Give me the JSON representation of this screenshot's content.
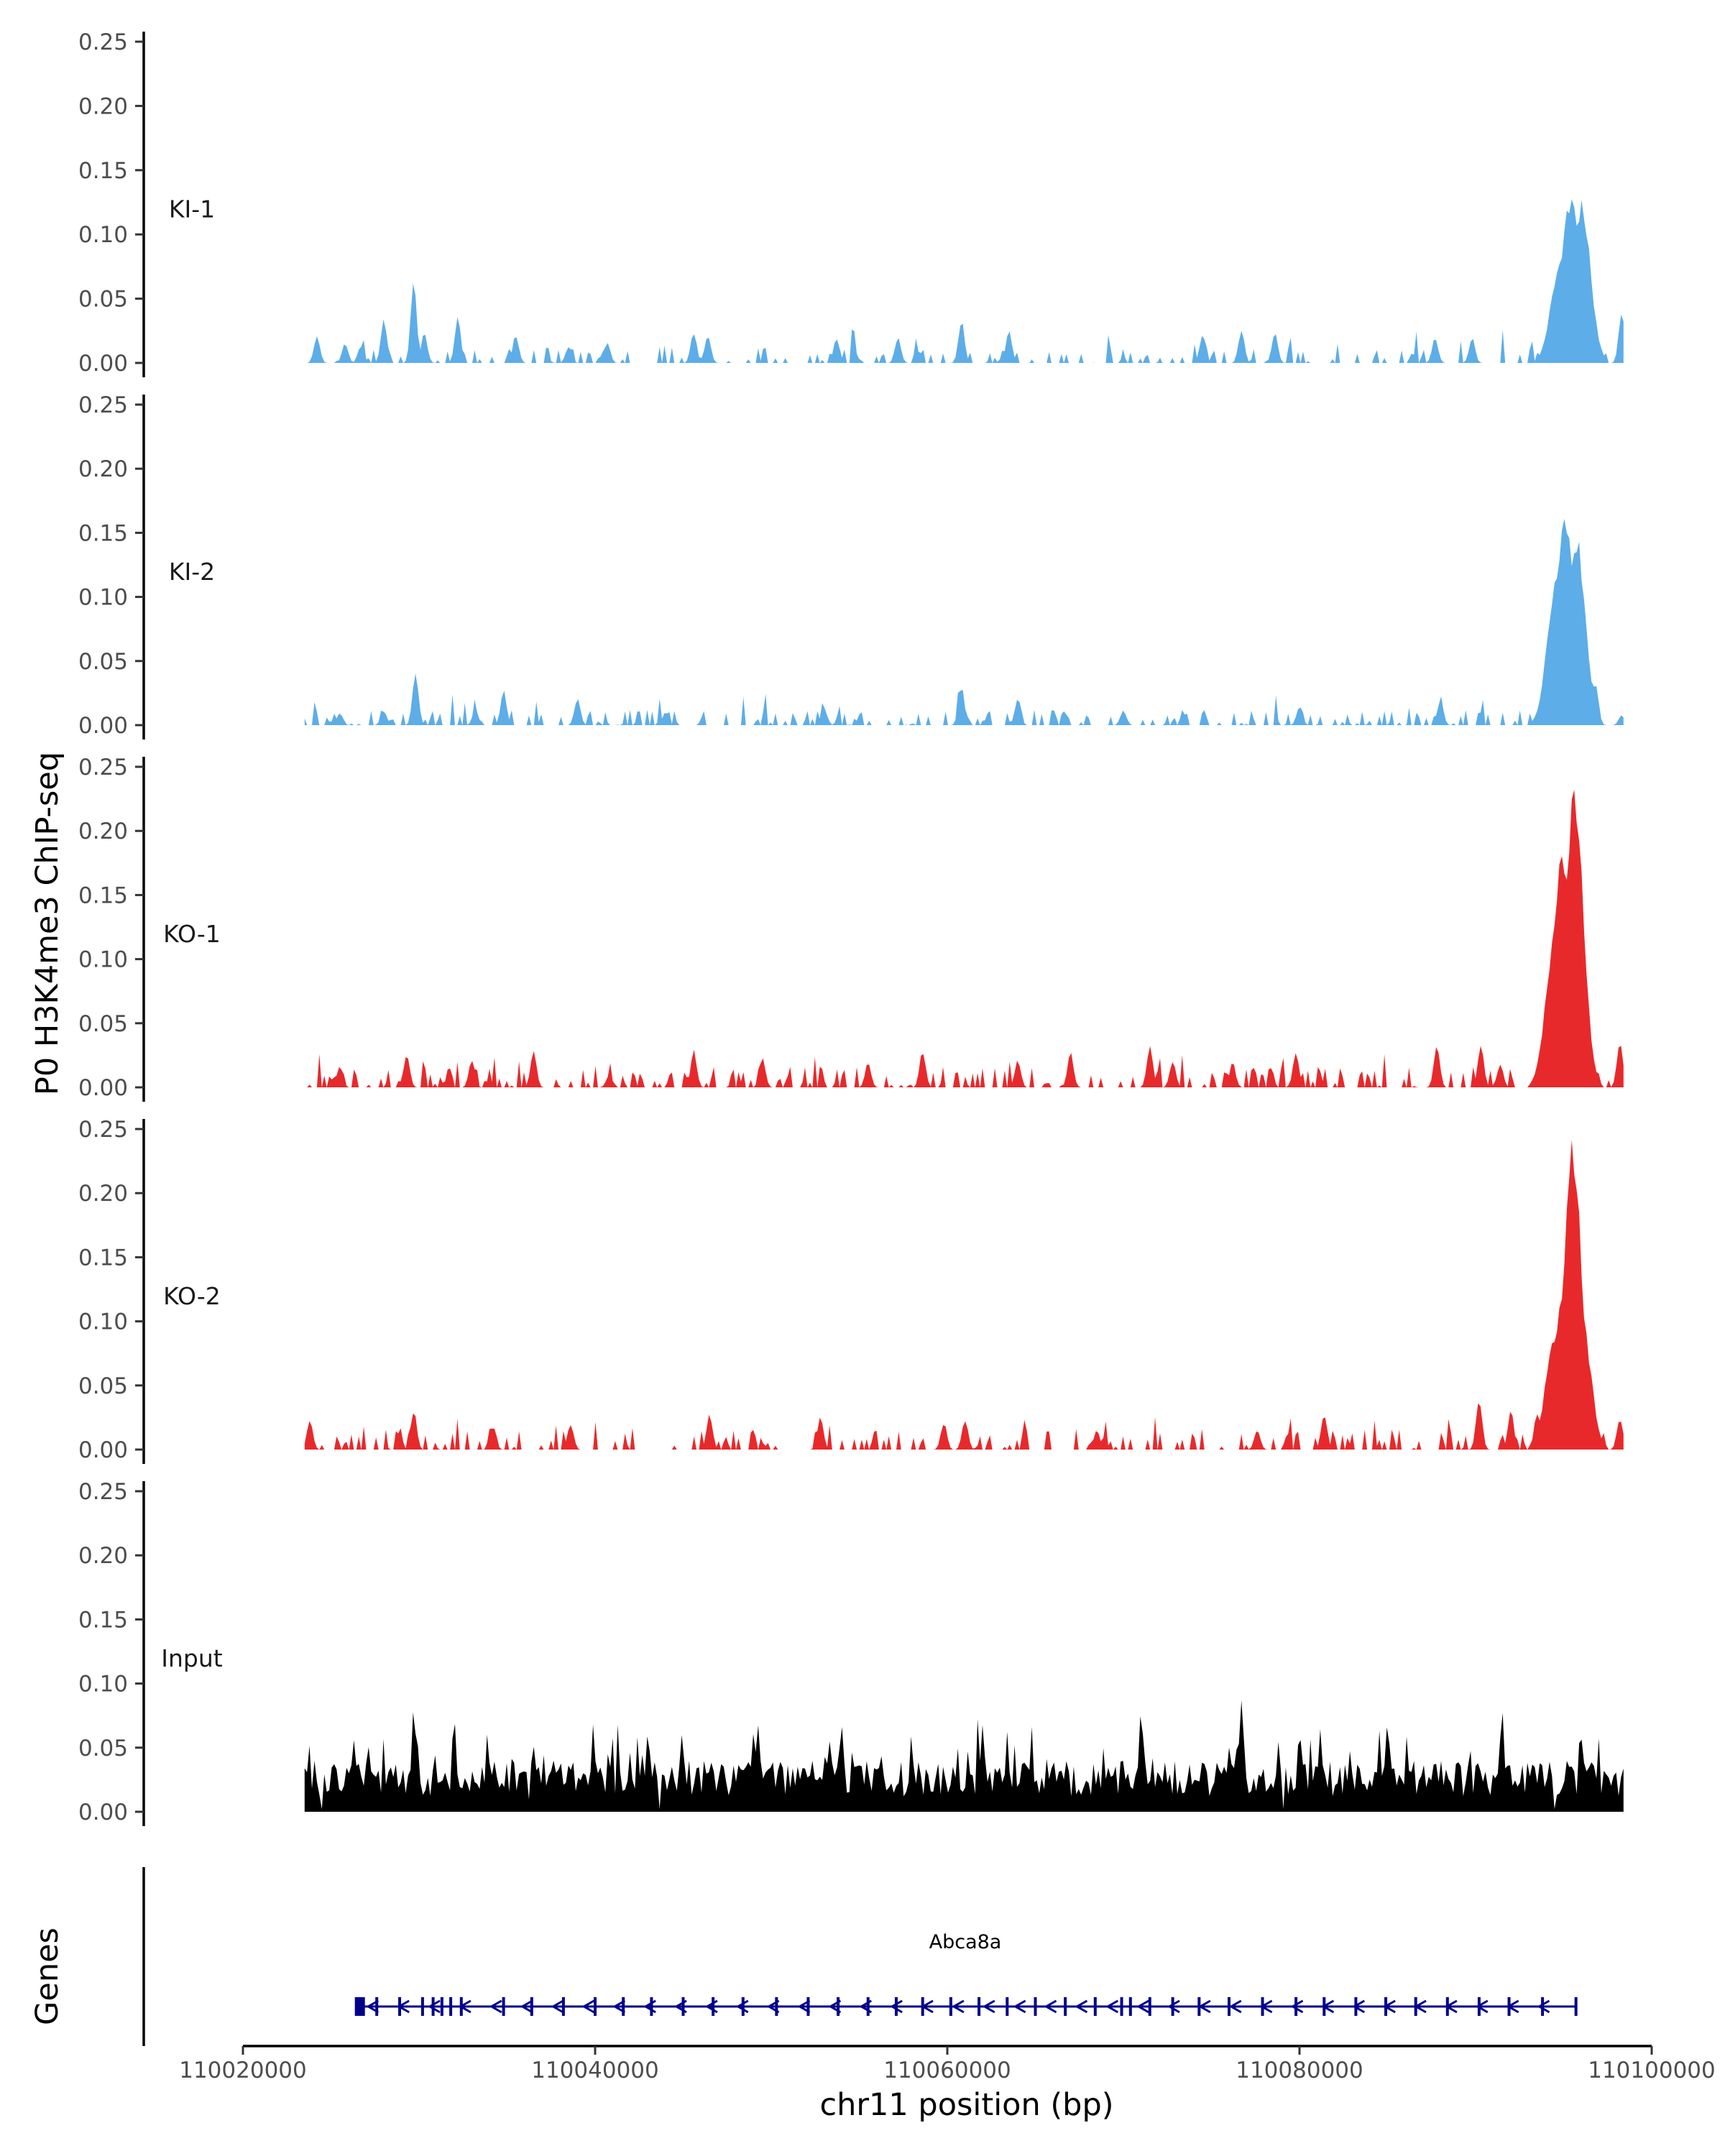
{
  "chart_data": {
    "type": "area",
    "title": "",
    "ylabel": "P0 H3K4me3 ChIP-seq",
    "genes_label": "Genes",
    "xlabel": "chr11 position (bp)",
    "xlim": [
      110020000,
      110100000
    ],
    "ylim": [
      0,
      0.25
    ],
    "x_ticks": [
      110020000,
      110040000,
      110060000,
      110080000,
      110100000
    ],
    "x_tick_labels": [
      "110020000",
      "110040000",
      "110060000",
      "110080000",
      "110100000"
    ],
    "y_ticks": [
      0,
      0.05,
      0.1,
      0.15,
      0.2,
      0.25
    ],
    "y_tick_labels": [
      "0.00",
      "0.05",
      "0.10",
      "0.15",
      "0.20",
      "0.25"
    ],
    "signal_range_bp": [
      110023500,
      110098500
    ],
    "series": [
      {
        "name": "KI-1",
        "color": "#5dade8",
        "peaks": [
          {
            "x": 110024200,
            "y": 0.022
          },
          {
            "x": 110025800,
            "y": 0.016
          },
          {
            "x": 110026700,
            "y": 0.014
          },
          {
            "x": 110028000,
            "y": 0.035
          },
          {
            "x": 110029700,
            "y": 0.065
          },
          {
            "x": 110030300,
            "y": 0.024
          },
          {
            "x": 110032200,
            "y": 0.036
          },
          {
            "x": 110035500,
            "y": 0.023
          },
          {
            "x": 110038500,
            "y": 0.014
          },
          {
            "x": 110040700,
            "y": 0.016
          },
          {
            "x": 110045600,
            "y": 0.025
          },
          {
            "x": 110046400,
            "y": 0.022
          },
          {
            "x": 110053700,
            "y": 0.02
          },
          {
            "x": 110057200,
            "y": 0.021
          },
          {
            "x": 110060800,
            "y": 0.035
          },
          {
            "x": 110063500,
            "y": 0.026
          },
          {
            "x": 110074500,
            "y": 0.024
          },
          {
            "x": 110076700,
            "y": 0.027
          },
          {
            "x": 110078600,
            "y": 0.025
          },
          {
            "x": 110087700,
            "y": 0.021
          },
          {
            "x": 110089800,
            "y": 0.02
          },
          {
            "x": 110094800,
            "y": 0.08
          },
          {
            "x": 110095400,
            "y": 0.133
          },
          {
            "x": 110096000,
            "y": 0.128
          },
          {
            "x": 110098300,
            "y": 0.043
          }
        ]
      },
      {
        "name": "KI-2",
        "color": "#5dade8",
        "peaks": [
          {
            "x": 110025500,
            "y": 0.01
          },
          {
            "x": 110028000,
            "y": 0.012
          },
          {
            "x": 110029800,
            "y": 0.043
          },
          {
            "x": 110033200,
            "y": 0.012
          },
          {
            "x": 110034800,
            "y": 0.028
          },
          {
            "x": 110039000,
            "y": 0.022
          },
          {
            "x": 110044000,
            "y": 0.011
          },
          {
            "x": 110053000,
            "y": 0.014
          },
          {
            "x": 110060800,
            "y": 0.032
          },
          {
            "x": 110064000,
            "y": 0.022
          },
          {
            "x": 110070000,
            "y": 0.012
          },
          {
            "x": 110080000,
            "y": 0.015
          },
          {
            "x": 110088000,
            "y": 0.02
          },
          {
            "x": 110094600,
            "y": 0.12
          },
          {
            "x": 110095100,
            "y": 0.167
          },
          {
            "x": 110095700,
            "y": 0.152
          },
          {
            "x": 110096800,
            "y": 0.035
          },
          {
            "x": 110098300,
            "y": 0.008
          }
        ]
      },
      {
        "name": "KO-1",
        "color": "#e8292b",
        "peaks": [
          {
            "x": 110025500,
            "y": 0.018
          },
          {
            "x": 110029300,
            "y": 0.028
          },
          {
            "x": 110033000,
            "y": 0.023
          },
          {
            "x": 110036500,
            "y": 0.029
          },
          {
            "x": 110040800,
            "y": 0.01
          },
          {
            "x": 110045600,
            "y": 0.03
          },
          {
            "x": 110049500,
            "y": 0.025
          },
          {
            "x": 110055500,
            "y": 0.02
          },
          {
            "x": 110058600,
            "y": 0.03
          },
          {
            "x": 110064000,
            "y": 0.022
          },
          {
            "x": 110067000,
            "y": 0.028
          },
          {
            "x": 110071500,
            "y": 0.034
          },
          {
            "x": 110072800,
            "y": 0.022
          },
          {
            "x": 110076200,
            "y": 0.02
          },
          {
            "x": 110079800,
            "y": 0.028
          },
          {
            "x": 110087800,
            "y": 0.035
          },
          {
            "x": 110090300,
            "y": 0.035
          },
          {
            "x": 110091400,
            "y": 0.02
          },
          {
            "x": 110094500,
            "y": 0.12
          },
          {
            "x": 110094900,
            "y": 0.182
          },
          {
            "x": 110095600,
            "y": 0.24
          },
          {
            "x": 110096300,
            "y": 0.06
          },
          {
            "x": 110098200,
            "y": 0.038
          }
        ]
      },
      {
        "name": "KO-2",
        "color": "#e8292b",
        "peaks": [
          {
            "x": 110023800,
            "y": 0.023
          },
          {
            "x": 110029700,
            "y": 0.032
          },
          {
            "x": 110034200,
            "y": 0.019
          },
          {
            "x": 110038600,
            "y": 0.021
          },
          {
            "x": 110046500,
            "y": 0.028
          },
          {
            "x": 110052800,
            "y": 0.026
          },
          {
            "x": 110059800,
            "y": 0.022
          },
          {
            "x": 110061000,
            "y": 0.025
          },
          {
            "x": 110068500,
            "y": 0.016
          },
          {
            "x": 110077600,
            "y": 0.016
          },
          {
            "x": 110081400,
            "y": 0.03
          },
          {
            "x": 110090200,
            "y": 0.042
          },
          {
            "x": 110092000,
            "y": 0.032
          },
          {
            "x": 110093500,
            "y": 0.03
          },
          {
            "x": 110094500,
            "y": 0.09
          },
          {
            "x": 110094900,
            "y": 0.12
          },
          {
            "x": 110095500,
            "y": 0.243
          },
          {
            "x": 110096000,
            "y": 0.11
          },
          {
            "x": 110096800,
            "y": 0.03
          },
          {
            "x": 110098200,
            "y": 0.026
          }
        ]
      },
      {
        "name": "Input",
        "color": "#000000",
        "peaks": [
          {
            "x": 110026300,
            "y": 0.06
          },
          {
            "x": 110029700,
            "y": 0.082
          },
          {
            "x": 110032000,
            "y": 0.074
          },
          {
            "x": 110036500,
            "y": 0.058
          },
          {
            "x": 110043000,
            "y": 0.068
          },
          {
            "x": 110049000,
            "y": 0.068
          },
          {
            "x": 110054000,
            "y": 0.075
          },
          {
            "x": 110062000,
            "y": 0.07
          },
          {
            "x": 110071000,
            "y": 0.08
          },
          {
            "x": 110076700,
            "y": 0.095
          },
          {
            "x": 110080000,
            "y": 0.068
          },
          {
            "x": 110085000,
            "y": 0.075
          },
          {
            "x": 110091500,
            "y": 0.082
          },
          {
            "x": 110096000,
            "y": 0.06
          }
        ]
      }
    ],
    "gene": {
      "name": "Abca8a",
      "start": 110026600,
      "end": 110095700,
      "strand": "-",
      "color": "#00008b",
      "exons": [
        110026600,
        110027600,
        110028900,
        110030200,
        110030800,
        110031300,
        110031800,
        110032400,
        110034800,
        110036400,
        110038200,
        110040000,
        110041600,
        110043200,
        110045000,
        110046700,
        110048400,
        110050300,
        110052100,
        110053800,
        110055500,
        110057100,
        110058600,
        110060200,
        110061800,
        110063400,
        110065000,
        110066700,
        110068400,
        110069900,
        110070400,
        110071500,
        110072800,
        110074300,
        110076000,
        110077900,
        110079800,
        110081400,
        110083200,
        110084900,
        110086600,
        110088400,
        110090200,
        110091900,
        110093800,
        110095700
      ],
      "large_exons": [
        110026600,
        110063300,
        110069800
      ]
    }
  }
}
